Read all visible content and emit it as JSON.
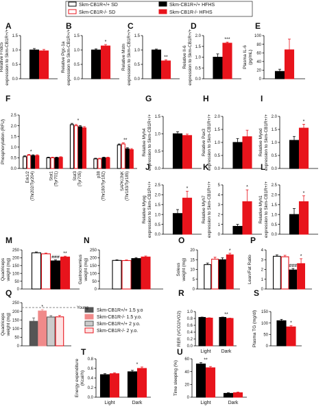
{
  "legend_main": [
    {
      "label": "Skm-CB1R+/+ SD",
      "fill": "#ffffff",
      "edge": "#000000"
    },
    {
      "label": "Skm-CB1R-/- SD",
      "fill": "#ffffff",
      "edge": "#e8141c"
    },
    {
      "label": "Skm-CB1R+/+ HFHS",
      "fill": "#000000",
      "edge": "#000000"
    },
    {
      "label": "Skm-CB1R-/- HFHS",
      "fill": "#e8141c",
      "edge": "#e8141c"
    }
  ],
  "legend_age": [
    {
      "label": "Skm-CB1R+/+ 1.5 y.o",
      "fill": "#555555",
      "edge": "#555555"
    },
    {
      "label": "Skm-CB1R-/- 1.5 y.o.",
      "fill": "#f08a8a",
      "edge": "#f08a8a"
    },
    {
      "label": "Skm-CB1R+/+ 2 y.o.",
      "fill": "#cccccc",
      "edge": "#555555"
    },
    {
      "label": "Skm-CB1R-/- 2 y.o.",
      "fill": "#fde3e3",
      "edge": "#e8141c"
    }
  ],
  "colors": {
    "black": "#000000",
    "red": "#e8141c",
    "grey_dark": "#555555",
    "pink": "#f08a8a",
    "grey_light": "#cccccc",
    "pink_light": "#fde3e3"
  },
  "chart_data": [
    {
      "panel": "A",
      "type": "bar",
      "ylabel": [
        "Relative Fndc5",
        "expression to Skm-CB1R+/+"
      ],
      "ylim": [
        0,
        1.5
      ],
      "yticks": [
        "0.0",
        "0.5",
        "1.0",
        "1.5"
      ],
      "series": [
        {
          "values": [
            1.0
          ],
          "err": [
            0.05
          ],
          "style": "black"
        },
        {
          "values": [
            0.97
          ],
          "err": [
            0.05
          ],
          "style": "red"
        }
      ],
      "sig": [
        "",
        ""
      ]
    },
    {
      "panel": "B",
      "type": "bar",
      "ylabel": [
        "Relative Pgc-1a",
        "expression to Skm-CB1R+/+"
      ],
      "ylim": [
        0,
        1.5
      ],
      "yticks": [
        "0.0",
        "0.5",
        "1.0",
        "1.5"
      ],
      "series": [
        {
          "values": [
            1.0
          ],
          "err": [
            0.04
          ],
          "style": "black"
        },
        {
          "values": [
            1.14
          ],
          "err": [
            0.05
          ],
          "style": "red"
        }
      ],
      "sig": [
        "",
        "*"
      ]
    },
    {
      "panel": "C",
      "type": "bar",
      "ylabel": [
        "Relative Mstn",
        "expression to Skm-CB1R+/+"
      ],
      "ylim": [
        0,
        1.5
      ],
      "yticks": [
        "0.0",
        "0.5",
        "1.0",
        "1.5"
      ],
      "series": [
        {
          "values": [
            1.0
          ],
          "err": [
            0.03
          ],
          "style": "black"
        },
        {
          "values": [
            0.62
          ],
          "err": [
            0.04
          ],
          "style": "red"
        }
      ],
      "sig": [
        "",
        "**"
      ]
    },
    {
      "panel": "D",
      "type": "bar",
      "ylabel": [
        "Relative Il-6",
        "expression to Skm-CB1R+/+"
      ],
      "ylim": [
        0,
        2.0
      ],
      "yticks": [
        "0.0",
        "0.5",
        "1.0",
        "1.5",
        "2.0"
      ],
      "series": [
        {
          "values": [
            1.0
          ],
          "err": [
            0.15
          ],
          "style": "black"
        },
        {
          "values": [
            1.65
          ],
          "err": [
            0.05
          ],
          "style": "red"
        }
      ],
      "sig": [
        "",
        "***"
      ]
    },
    {
      "panel": "E",
      "type": "bar",
      "ylabel": [
        "Plasma IL-6",
        "(pg/mL)"
      ],
      "ylim": [
        0,
        100
      ],
      "yticks": [
        "0",
        "20",
        "40",
        "60",
        "80",
        "100"
      ],
      "series": [
        {
          "values": [
            17
          ],
          "err": [
            5
          ],
          "style": "black"
        },
        {
          "values": [
            67
          ],
          "err": [
            25
          ],
          "style": "red"
        }
      ],
      "sig": [
        "",
        ""
      ]
    },
    {
      "panel": "F",
      "type": "bar",
      "ylabel": [
        "Phosphorylation (RFU)"
      ],
      "ylim": [
        0,
        2.5
      ],
      "yticks": [
        "0.0",
        "0.5",
        "1.0",
        "1.5",
        "2.0",
        "2.5"
      ],
      "categories": [
        "Erk1/2 (Thr202/Tyr204)",
        "Stat1 (Tyr701)",
        "Stat3 (Tyr705)",
        "p38 (Thr180/Tyr182)",
        "SAPK/JNK (Thr183/Tyr185)"
      ],
      "series": [
        {
          "values": [
            0.55,
            0.5,
            2.05,
            0.45,
            1.1
          ],
          "err": [
            0.04,
            0.03,
            0.06,
            0.03,
            0.05
          ],
          "style": "open-black"
        },
        {
          "values": [
            0.62,
            0.5,
            2.0,
            0.45,
            1.15
          ],
          "err": [
            0.04,
            0.03,
            0.06,
            0.03,
            0.05
          ],
          "style": "open-red"
        },
        {
          "values": [
            0.6,
            0.5,
            1.95,
            0.5,
            0.92
          ],
          "err": [
            0.04,
            0.03,
            0.06,
            0.03,
            0.05
          ],
          "style": "black"
        },
        {
          "values": [
            0.6,
            0.52,
            1.9,
            0.5,
            0.88
          ],
          "err": [
            0.04,
            0.03,
            0.06,
            0.03,
            0.05
          ],
          "style": "red"
        }
      ],
      "sig": [
        "*",
        "",
        "*",
        "",
        "**"
      ]
    },
    {
      "panel": "G",
      "type": "bar",
      "ylabel": [
        "Relative Myh4",
        "expression to Skm-CB1R+/+"
      ],
      "ylim": [
        0,
        1.5
      ],
      "yticks": [
        "0.0",
        "0.5",
        "1.0",
        "1.5"
      ],
      "series": [
        {
          "values": [
            1.0
          ],
          "err": [
            0.06
          ],
          "style": "black"
        },
        {
          "values": [
            0.95
          ],
          "err": [
            0.04
          ],
          "style": "red"
        }
      ],
      "sig": [
        "",
        ""
      ]
    },
    {
      "panel": "H",
      "type": "bar",
      "ylabel": [
        "Relative Pax3",
        "expression to Skm-CB1R+/+"
      ],
      "ylim": [
        0,
        2.0
      ],
      "yticks": [
        "0.0",
        "0.5",
        "1.0",
        "1.5",
        "2.0"
      ],
      "series": [
        {
          "values": [
            1.0
          ],
          "err": [
            0.15
          ],
          "style": "black"
        },
        {
          "values": [
            1.22
          ],
          "err": [
            0.25
          ],
          "style": "red"
        }
      ],
      "sig": [
        "",
        ""
      ]
    },
    {
      "panel": "I",
      "type": "bar",
      "ylabel": [
        "Relative Myod",
        "expression to Skm-CB1R+/+"
      ],
      "ylim": [
        0,
        2.0
      ],
      "yticks": [
        "0.0",
        "0.5",
        "1.0",
        "1.5",
        "2.0"
      ],
      "series": [
        {
          "values": [
            1.08
          ],
          "err": [
            0.15
          ],
          "style": "black"
        },
        {
          "values": [
            1.55
          ],
          "err": [
            0.15
          ],
          "style": "red"
        }
      ],
      "sig": [
        "",
        "*"
      ]
    },
    {
      "panel": "J",
      "type": "bar",
      "ylabel": [
        "Relative Myog",
        "expression to Skm-CB1R+/+"
      ],
      "ylim": [
        0,
        2.5
      ],
      "yticks": [
        "0.0",
        "0.5",
        "1.0",
        "1.5",
        "2.0",
        "2.5"
      ],
      "series": [
        {
          "values": [
            1.05
          ],
          "err": [
            0.2
          ],
          "style": "black"
        },
        {
          "values": [
            1.83
          ],
          "err": [
            0.35
          ],
          "style": "red"
        }
      ],
      "sig": [
        "",
        "*"
      ]
    },
    {
      "panel": "K",
      "type": "bar",
      "ylabel": [
        "Relative Myh7",
        "expression to Skm-CB1R+/+"
      ],
      "ylim": [
        0,
        5
      ],
      "yticks": [
        "0",
        "1",
        "2",
        "3",
        "4",
        "5"
      ],
      "series": [
        {
          "values": [
            0.8
          ],
          "err": [
            0.2
          ],
          "style": "black"
        },
        {
          "values": [
            3.3
          ],
          "err": [
            1.2
          ],
          "style": "red"
        }
      ],
      "sig": [
        "",
        "*"
      ]
    },
    {
      "panel": "L",
      "type": "bar",
      "ylabel": [
        "Relative Myh1",
        "expression to Skm-CB1R+/+"
      ],
      "ylim": [
        0,
        2.5
      ],
      "yticks": [
        "0.0",
        "0.5",
        "1.0",
        "1.5",
        "2.0",
        "2.5"
      ],
      "series": [
        {
          "values": [
            1.0
          ],
          "err": [
            0.3
          ],
          "style": "black"
        },
        {
          "values": [
            1.65
          ],
          "err": [
            0.3
          ],
          "style": "red"
        }
      ],
      "sig": [
        "",
        "*"
      ]
    },
    {
      "panel": "M",
      "type": "bar",
      "ylabel": [
        "Quadriceps",
        "weight (mg)"
      ],
      "ylim": [
        0,
        250
      ],
      "yticks": [
        "0",
        "50",
        "100",
        "150",
        "200",
        "250"
      ],
      "series": [
        {
          "values": [
            232
          ],
          "err": [
            5
          ],
          "style": "open-black"
        },
        {
          "values": [
            225
          ],
          "err": [
            5
          ],
          "style": "open-red"
        },
        {
          "values": [
            180
          ],
          "err": [
            6
          ],
          "style": "black"
        },
        {
          "values": [
            205
          ],
          "err": [
            5
          ],
          "style": "red"
        }
      ],
      "sig": [
        "",
        "",
        "###",
        "**"
      ]
    },
    {
      "panel": "N",
      "type": "bar",
      "ylabel": [
        "Gastrocnemius",
        "weight (mg)"
      ],
      "ylim": [
        0,
        250
      ],
      "yticks": [
        "0",
        "50",
        "100",
        "150",
        "200",
        "250"
      ],
      "series": [
        {
          "values": [
            183
          ],
          "err": [
            4
          ],
          "style": "open-black"
        },
        {
          "values": [
            182
          ],
          "err": [
            4
          ],
          "style": "open-red"
        },
        {
          "values": [
            195
          ],
          "err": [
            6
          ],
          "style": "black"
        },
        {
          "values": [
            205
          ],
          "err": [
            6
          ],
          "style": "red"
        }
      ],
      "sig": [
        "",
        "",
        "",
        ""
      ]
    },
    {
      "panel": "O",
      "type": "bar",
      "ylabel": [
        "Soleus",
        "weight (mg)"
      ],
      "ylim": [
        0,
        20
      ],
      "yticks": [
        "0",
        "5",
        "10",
        "15",
        "20"
      ],
      "series": [
        {
          "values": [
            12.5
          ],
          "err": [
            0.8
          ],
          "style": "open-black"
        },
        {
          "values": [
            15.3
          ],
          "err": [
            1
          ],
          "style": "open-red"
        },
        {
          "values": [
            15.0
          ],
          "err": [
            1
          ],
          "style": "black"
        },
        {
          "values": [
            17.5
          ],
          "err": [
            0.8
          ],
          "style": "red"
        }
      ],
      "sig": [
        "",
        "",
        "",
        "*"
      ]
    },
    {
      "panel": "P",
      "type": "bar",
      "ylabel": [
        "Lean/Fat Ratio"
      ],
      "ylim": [
        0,
        4
      ],
      "yticks": [
        "0",
        "1",
        "2",
        "3",
        "4"
      ],
      "series": [
        {
          "values": [
            3.35
          ],
          "err": [
            0.15
          ],
          "style": "open-black"
        },
        {
          "values": [
            3.3
          ],
          "err": [
            0.15
          ],
          "style": "open-red"
        },
        {
          "values": [
            1.95
          ],
          "err": [
            0.15
          ],
          "style": "black"
        },
        {
          "values": [
            2.6
          ],
          "err": [
            0.5
          ],
          "style": "red"
        }
      ],
      "sig": [
        "",
        "",
        "###",
        "*"
      ]
    },
    {
      "panel": "Q",
      "type": "bar",
      "ylabel": [
        "Quadriceps",
        "weight (mg)"
      ],
      "ylim": [
        0,
        250
      ],
      "yticks": [
        "0",
        "50",
        "100",
        "150",
        "200",
        "250"
      ],
      "series": [
        {
          "values": [
            142
          ],
          "err": [
            20
          ],
          "style": "grey_dark"
        },
        {
          "values": [
            202
          ],
          "err": [
            8
          ],
          "style": "pink"
        },
        {
          "values": [
            167
          ],
          "err": [
            8
          ],
          "style": "grey_light"
        },
        {
          "values": [
            168
          ],
          "err": [
            8
          ],
          "style": "pink_light"
        }
      ],
      "sig": [
        "",
        "*",
        "",
        ""
      ],
      "reference_line": {
        "value": 222,
        "label": "Young"
      }
    },
    {
      "panel": "R",
      "type": "bar",
      "ylabel": [
        "RER (VCO2/VO2)"
      ],
      "ylim": [
        0,
        1.0
      ],
      "yticks": [
        "0.0",
        "0.2",
        "0.4",
        "0.6",
        "0.8",
        "1.0"
      ],
      "categories": [
        "Light",
        "Dark"
      ],
      "series": [
        {
          "values": [
            0.83,
            0.83
          ],
          "err": [
            0.01,
            0.01
          ],
          "style": "black"
        },
        {
          "values": [
            0.81,
            0.8
          ],
          "err": [
            0.01,
            0.01
          ],
          "style": "red"
        }
      ],
      "sig": [
        "",
        "**"
      ]
    },
    {
      "panel": "S",
      "type": "bar",
      "ylabel": [
        "Plasma TG (mg/dl)"
      ],
      "ylim": [
        0,
        150
      ],
      "yticks": [
        "0",
        "50",
        "100",
        "150"
      ],
      "series": [
        {
          "values": [
            110
          ],
          "err": [
            6
          ],
          "style": "black"
        },
        {
          "values": [
            83
          ],
          "err": [
            5
          ],
          "style": "red"
        }
      ],
      "sig": [
        "",
        "*"
      ]
    },
    {
      "panel": "T",
      "type": "bar",
      "ylabel": [
        "Energy expenditure",
        "(Kcal/h)"
      ],
      "ylim": [
        0,
        0.8
      ],
      "yticks": [
        "0.0",
        "0.2",
        "0.4",
        "0.6",
        "0.8"
      ],
      "categories": [
        "Light",
        "Dark"
      ],
      "series": [
        {
          "values": [
            0.47,
            0.53
          ],
          "err": [
            0.02,
            0.03
          ],
          "style": "black"
        },
        {
          "values": [
            0.49,
            0.6
          ],
          "err": [
            0.02,
            0.03
          ],
          "style": "red"
        }
      ],
      "sig": [
        "",
        "*"
      ]
    },
    {
      "panel": "U",
      "type": "bar",
      "ylabel": [
        "Time sleeping (%)"
      ],
      "ylim": [
        0,
        60
      ],
      "yticks": [
        "0",
        "20",
        "40",
        "60"
      ],
      "categories": [
        "Light",
        "Dark"
      ],
      "series": [
        {
          "values": [
            52,
            6
          ],
          "err": [
            2,
            1
          ],
          "style": "black"
        },
        {
          "values": [
            46,
            7
          ],
          "err": [
            2,
            1
          ],
          "style": "red"
        }
      ],
      "sig": [
        "**",
        ""
      ]
    }
  ]
}
